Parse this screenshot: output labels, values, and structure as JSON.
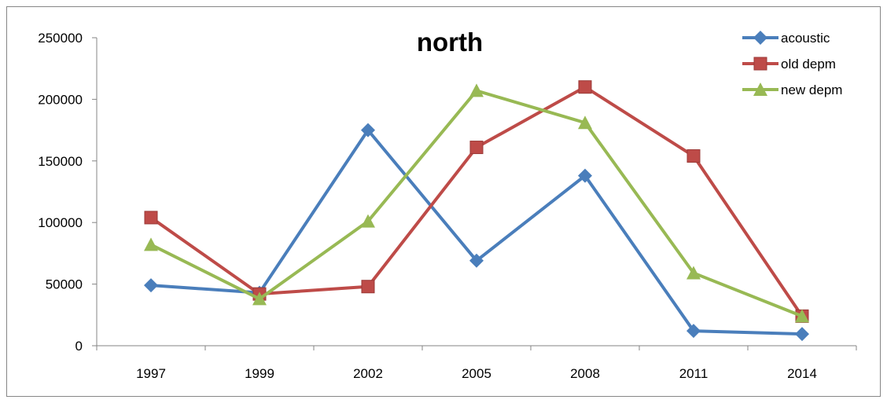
{
  "chart_data": {
    "type": "line",
    "title": "north",
    "xlabel": "",
    "ylabel": "",
    "categories": [
      "1997",
      "1999",
      "2002",
      "2005",
      "2008",
      "2011",
      "2014"
    ],
    "ylim": [
      0,
      250000
    ],
    "yticks": [
      "0",
      "50000",
      "100000",
      "150000",
      "200000",
      "250000"
    ],
    "grid": false,
    "legend_position": "top-right",
    "series": [
      {
        "name": "acoustic",
        "color": "#4a7ebb",
        "marker": "diamond",
        "values": [
          49000,
          43000,
          175000,
          69000,
          138000,
          12000,
          9500
        ]
      },
      {
        "name": "old depm",
        "color": "#be4b48",
        "marker": "square",
        "values": [
          104000,
          42000,
          48000,
          161000,
          210000,
          154000,
          24000
        ]
      },
      {
        "name": "new depm",
        "color": "#98b954",
        "marker": "triangle",
        "values": [
          82000,
          38000,
          101000,
          207000,
          181000,
          59000,
          24000
        ]
      }
    ]
  }
}
